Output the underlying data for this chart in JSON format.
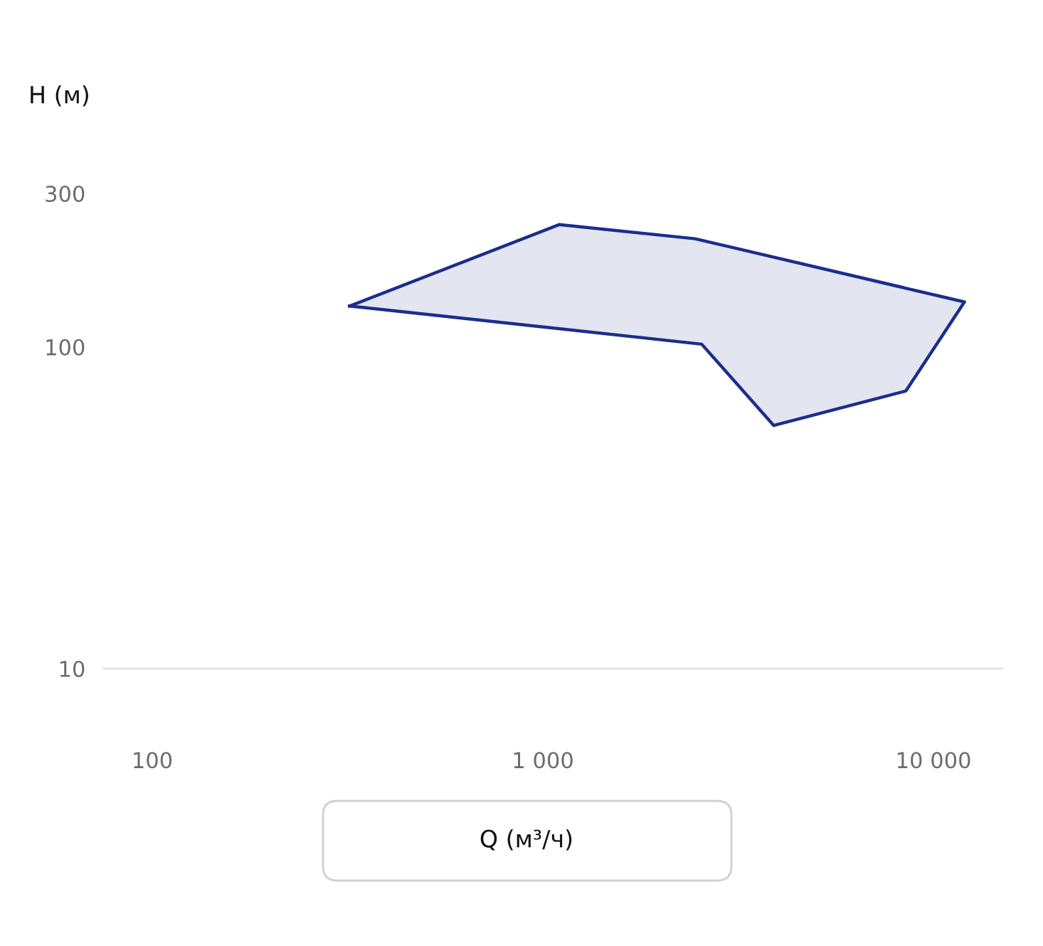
{
  "chart_data": {
    "type": "area",
    "xlabel": "Q (м³/ч)",
    "ylabel": "H (м)",
    "log": "xy",
    "series": [
      {
        "color": "#1b2e8c",
        "x": [
          320,
          1100,
          2450,
          12000,
          8500,
          3900,
          2550
        ],
        "values": [
          134,
          240,
          217,
          138,
          73,
          57,
          102
        ]
      }
    ],
    "xlim": [
      75,
      15000
    ],
    "ylim": [
      10,
      300
    ],
    "xticks": [
      100,
      {
        "value": 1000,
        "label": "1 000"
      },
      {
        "value": 10000,
        "label": "10 000"
      }
    ],
    "yticks": [
      10,
      100,
      300
    ]
  }
}
